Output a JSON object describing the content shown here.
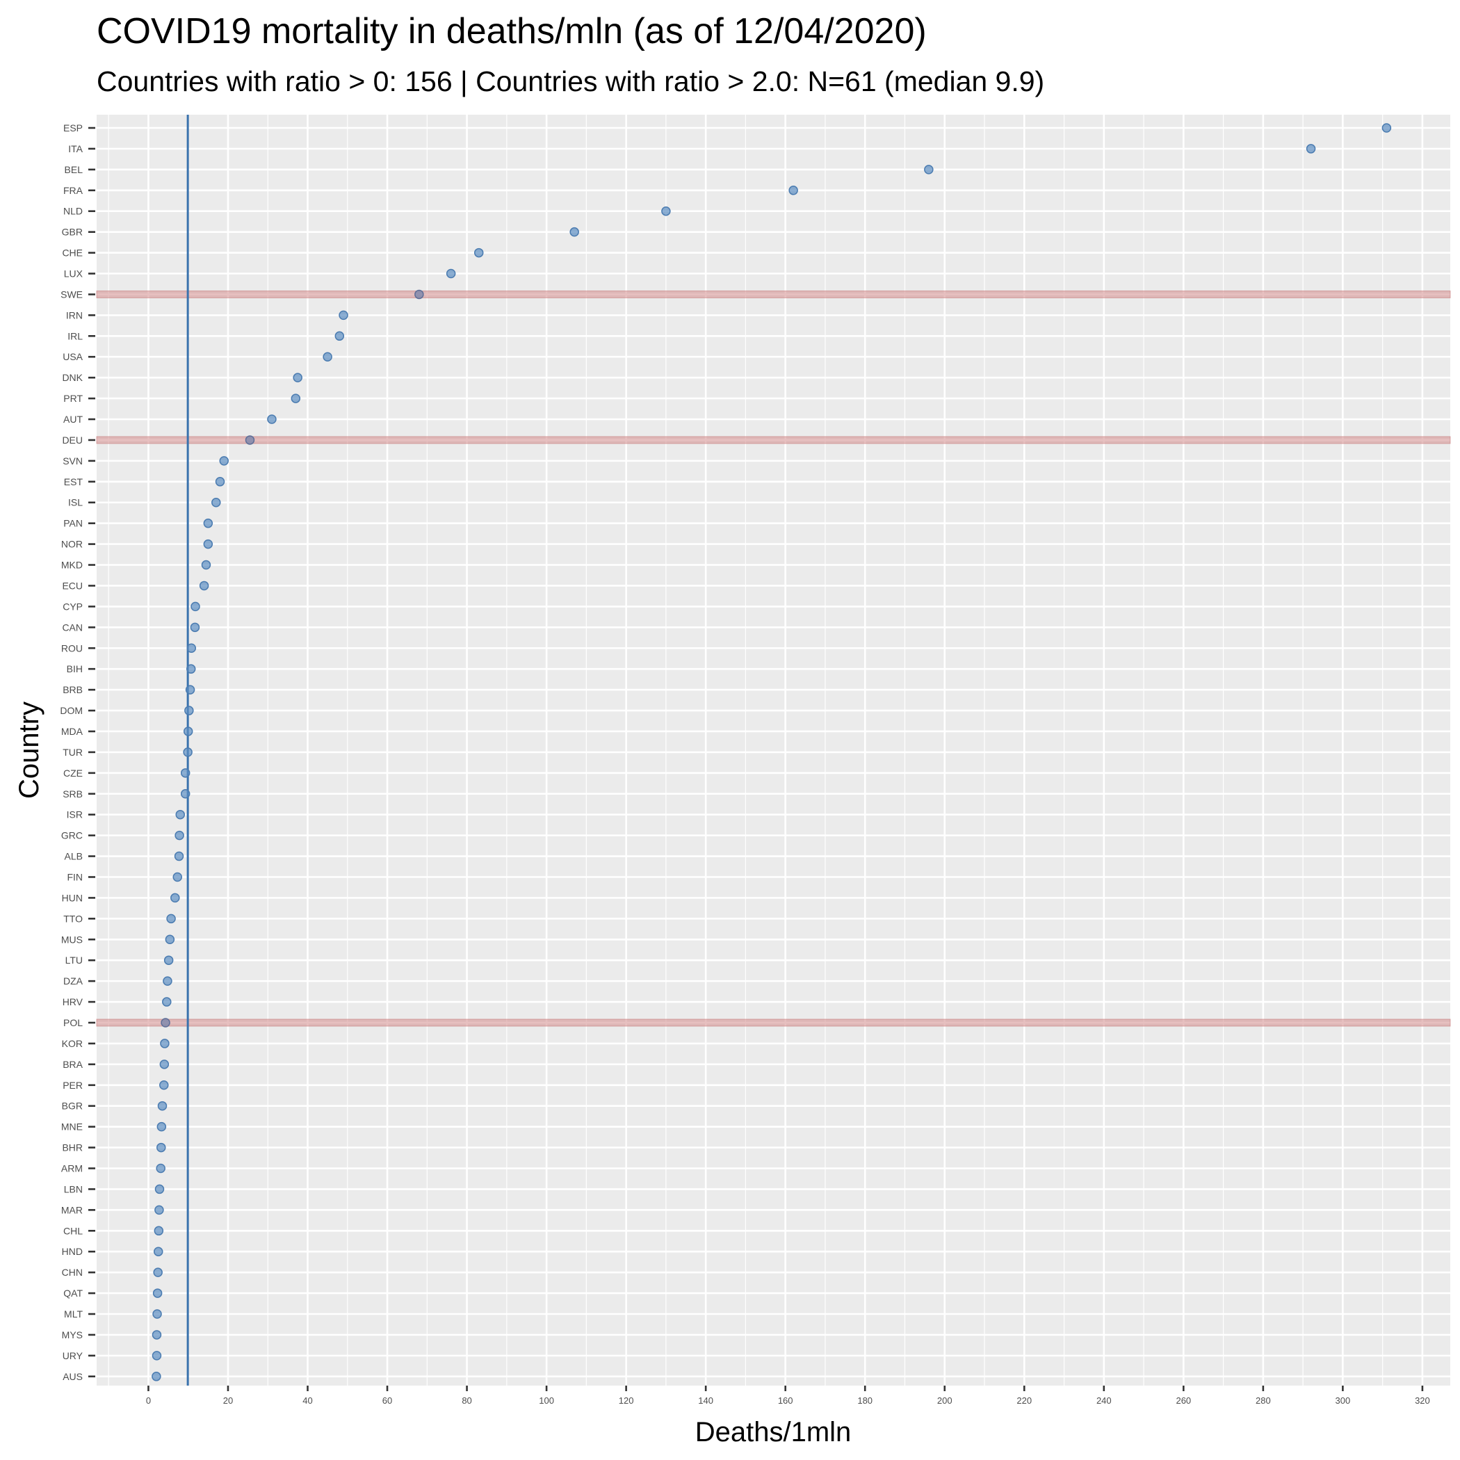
{
  "chart_data": {
    "type": "scatter",
    "title": "COVID19 mortality in deaths/mln (as of 12/04/2020)",
    "subtitle": "Countries with ratio > 0: 156 | Countries with ratio > 2.0: N=61 (median 9.9)",
    "xlabel": "Deaths/1mln",
    "ylabel": "Country",
    "xlim": [
      -13,
      327
    ],
    "x_ticks": [
      0,
      20,
      40,
      60,
      80,
      100,
      120,
      140,
      160,
      180,
      200,
      220,
      240,
      260,
      280,
      300,
      320
    ],
    "grid": true,
    "median_line": 9.9,
    "highlighted_countries": [
      "SWE",
      "DEU",
      "POL"
    ],
    "colors": {
      "point": "#5b8dc2",
      "median_line": "#3a72ad",
      "highlight_band": "#d48c8c",
      "panel_background": "#ebebeb",
      "grid": "#ffffff"
    },
    "categories": [
      "ESP",
      "ITA",
      "BEL",
      "FRA",
      "NLD",
      "GBR",
      "CHE",
      "LUX",
      "SWE",
      "IRN",
      "IRL",
      "USA",
      "DNK",
      "PRT",
      "AUT",
      "DEU",
      "SVN",
      "EST",
      "ISL",
      "PAN",
      "NOR",
      "MKD",
      "ECU",
      "CYP",
      "CAN",
      "ROU",
      "BIH",
      "BRB",
      "DOM",
      "MDA",
      "TUR",
      "CZE",
      "SRB",
      "ISR",
      "GRC",
      "ALB",
      "FIN",
      "HUN",
      "TTO",
      "MUS",
      "LTU",
      "DZA",
      "HRV",
      "POL",
      "KOR",
      "BRA",
      "PER",
      "BGR",
      "MNE",
      "BHR",
      "ARM",
      "LBN",
      "MAR",
      "CHL",
      "HND",
      "CHN",
      "QAT",
      "MLT",
      "MYS",
      "URY",
      "AUS"
    ],
    "values": [
      311,
      292,
      196,
      162,
      130,
      107,
      83,
      76,
      68,
      49,
      48,
      45,
      37.5,
      37,
      31,
      25.5,
      19,
      18,
      17,
      15,
      15,
      14.5,
      14,
      11.8,
      11.7,
      10.8,
      10.7,
      10.5,
      10.2,
      10,
      9.9,
      9.3,
      9.3,
      8,
      7.8,
      7.7,
      7.3,
      6.7,
      5.7,
      5.4,
      5.1,
      4.8,
      4.6,
      4.3,
      4.1,
      4,
      3.9,
      3.5,
      3.3,
      3.2,
      3.1,
      2.8,
      2.7,
      2.6,
      2.5,
      2.4,
      2.3,
      2.2,
      2.1,
      2.1,
      2.0
    ]
  }
}
